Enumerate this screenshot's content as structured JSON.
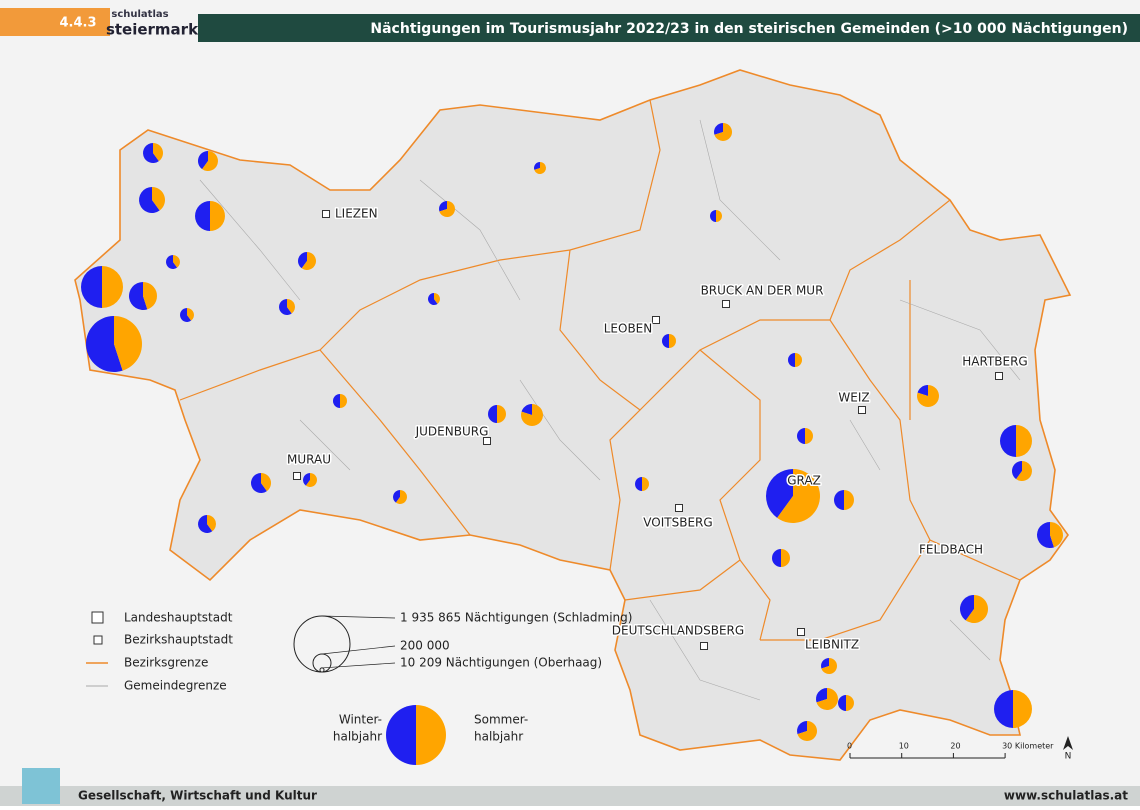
{
  "header": {
    "section": "4.4.3",
    "logo_top": "schulatlas",
    "logo_bottom": "steiermark",
    "title": "Nächtigungen im Tourismusjahr 2022/23 in den steirischen Gemeinden (>10 000 Nächtigungen)"
  },
  "districts": [
    "LIEZEN",
    "BRUCK AN DER MUR",
    "LEOBEN",
    "HARTBERG",
    "WEIZ",
    "JUDENBURG",
    "MURAU",
    "GRAZ",
    "VOITSBERG",
    "FELDBACH",
    "DEUTSCHLANDSBERG",
    "LEIBNITZ"
  ],
  "legend": {
    "items": [
      "Landeshauptstadt",
      "Bezirkshauptstadt",
      "Bezirksgrenze",
      "Gemeindegrenze"
    ],
    "sizes": [
      {
        "value": 1935865,
        "label": "1 935 865 Nächtigungen (Schladming)"
      },
      {
        "value": 200000,
        "label": "200 000"
      },
      {
        "value": 10209,
        "label": "10 209 Nächtigungen (Oberhaag)"
      }
    ],
    "winter": [
      "Winter-",
      "halbjahr"
    ],
    "summer": [
      "Sommer-",
      "halbjahr"
    ]
  },
  "pies": [
    {
      "total": 1935865,
      "winter_share": 55
    },
    {
      "total": 1090000,
      "winter_share": 50
    },
    {
      "total": 484000,
      "winter_share": 55
    },
    {
      "total": 555000,
      "winter_share": 50
    },
    {
      "total": 417000,
      "winter_share": 60
    },
    {
      "total": 247000,
      "winter_share": 60
    },
    {
      "total": 247000,
      "winter_share": 40
    },
    {
      "total": 1800000,
      "winter_share": 40
    },
    {
      "total": 632000,
      "winter_share": 50
    },
    {
      "total": 891000,
      "winter_share": 50
    },
    {
      "total": 484000,
      "winter_share": 40
    },
    {
      "total": 417000,
      "winter_share": 55
    },
    {
      "total": 299000,
      "winter_share": 20
    },
    {
      "total": 200000,
      "winter_share": 50
    },
    {
      "total": 299000,
      "winter_share": 20
    },
    {
      "total": 299000,
      "winter_share": 30
    },
    {
      "total": 247000,
      "winter_share": 30
    },
    {
      "total": 247000,
      "winter_share": 60
    },
    {
      "total": 200000,
      "winter_share": 60
    },
    {
      "total": 158000,
      "winter_share": 60
    },
    {
      "total": 200000,
      "winter_share": 40
    },
    {
      "total": 247000,
      "winter_share": 40
    },
    {
      "total": 247000,
      "winter_share": 50
    },
    {
      "total": 200000,
      "winter_share": 30
    },
    {
      "total": 158000,
      "winter_share": 30
    },
    {
      "total": 121000,
      "winter_share": 60
    },
    {
      "total": 121000,
      "winter_share": 60
    },
    {
      "total": 200000,
      "winter_share": 50
    },
    {
      "total": 158000,
      "winter_share": 30
    },
    {
      "total": 158000,
      "winter_share": 50
    },
    {
      "total": 121000,
      "winter_share": 40
    },
    {
      "total": 121000,
      "winter_share": 50
    },
    {
      "total": 121000,
      "winter_share": 50
    },
    {
      "total": 158000,
      "winter_share": 50
    },
    {
      "total": 121000,
      "winter_share": 50
    },
    {
      "total": 89000,
      "winter_share": 60
    },
    {
      "total": 121000,
      "winter_share": 40
    },
    {
      "total": 89000,
      "winter_share": 30
    },
    {
      "total": 121000,
      "winter_share": 50
    },
    {
      "total": 89000,
      "winter_share": 50
    }
  ],
  "scalebar": {
    "ticks": [
      0,
      10,
      20,
      {
        "value": 30,
        "label": "30 Kilometer"
      }
    ]
  },
  "north": "N",
  "footer": {
    "left": "Gesellschaft, Wirtschaft und Kultur",
    "right": "www.schulatlas.at"
  }
}
